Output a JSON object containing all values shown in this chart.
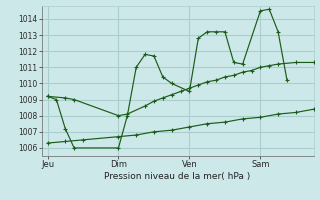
{
  "background_color": "#cce8e8",
  "grid_color": "#aacece",
  "line_color": "#1a5c1a",
  "title": "Pression niveau de la mer( hPa )",
  "ylim": [
    1005.5,
    1014.8
  ],
  "yticks": [
    1006,
    1007,
    1008,
    1009,
    1010,
    1011,
    1012,
    1013,
    1014
  ],
  "xtick_labels": [
    "Jeu",
    "Dim",
    "Ven",
    "Sam"
  ],
  "xtick_positions": [
    0,
    24,
    48,
    72
  ],
  "xlim": [
    -2,
    90
  ],
  "vline_positions": [
    0,
    24,
    48,
    72
  ],
  "line1_x": [
    0,
    3,
    6,
    9,
    24,
    27,
    30,
    33,
    36,
    39,
    42,
    48,
    51,
    54,
    57,
    60,
    63,
    66,
    72,
    75,
    78,
    81
  ],
  "line1_y": [
    1009.2,
    1009.0,
    1007.2,
    1006.0,
    1006.0,
    1008.0,
    1011.0,
    1011.8,
    1011.7,
    1010.4,
    1010.0,
    1009.5,
    1012.8,
    1013.2,
    1013.2,
    1013.2,
    1011.3,
    1011.2,
    1014.5,
    1014.6,
    1013.2,
    1010.2
  ],
  "line2_x": [
    0,
    6,
    9,
    24,
    27,
    33,
    36,
    39,
    42,
    45,
    48,
    51,
    54,
    57,
    60,
    63,
    66,
    69,
    72,
    75,
    78,
    84,
    90
  ],
  "line2_y": [
    1009.2,
    1009.1,
    1009.0,
    1008.0,
    1008.1,
    1008.6,
    1008.9,
    1009.1,
    1009.3,
    1009.5,
    1009.7,
    1009.9,
    1010.1,
    1010.2,
    1010.4,
    1010.5,
    1010.7,
    1010.8,
    1011.0,
    1011.1,
    1011.2,
    1011.3,
    1011.3
  ],
  "line3_x": [
    0,
    6,
    12,
    24,
    30,
    36,
    42,
    48,
    54,
    60,
    66,
    72,
    78,
    84,
    90
  ],
  "line3_y": [
    1006.3,
    1006.4,
    1006.5,
    1006.7,
    1006.8,
    1007.0,
    1007.1,
    1007.3,
    1007.5,
    1007.6,
    1007.8,
    1007.9,
    1008.1,
    1008.2,
    1008.4
  ]
}
